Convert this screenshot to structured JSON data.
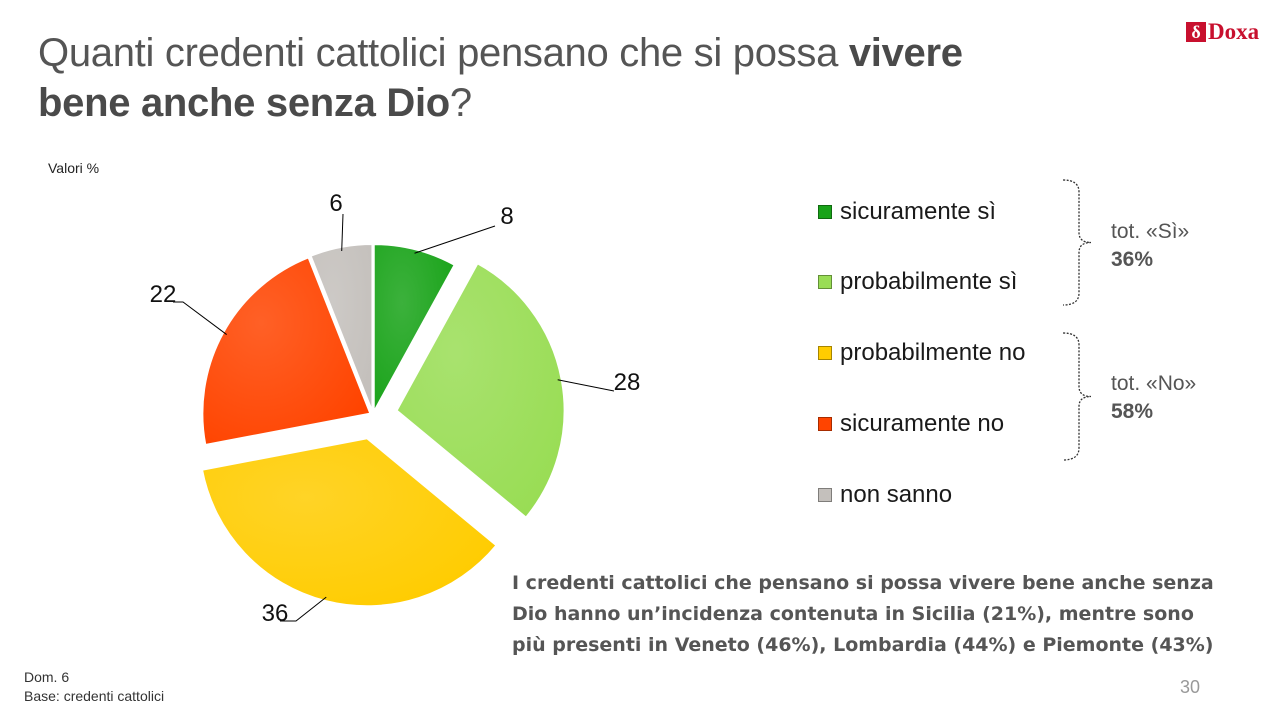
{
  "title": {
    "part1": "Quanti credenti cattolici pensano che si possa ",
    "bold1": "vivere",
    "bold2": "bene anche senza Dio",
    "part2": "?"
  },
  "logo": {
    "mark": "δ",
    "word": "Doxa"
  },
  "unit_label": "Valori %",
  "chart_data": {
    "type": "pie",
    "categories": [
      "sicuramente sì",
      "probabilmente sì",
      "probabilmente no",
      "sicuramente no",
      "non sanno"
    ],
    "values": [
      8,
      28,
      36,
      22,
      6
    ],
    "colors": [
      "#19a319",
      "#99dd55",
      "#ffcc00",
      "#ff4400",
      "#c4c0bc"
    ],
    "legend": "right",
    "annotations": [
      {
        "label": "tot. «Sì»",
        "value": "36%"
      },
      {
        "label": "tot. «No»",
        "value": "58%"
      }
    ]
  },
  "note": "I credenti cattolici che pensano si possa vivere bene anche senza Dio hanno un’incidenza contenuta in Sicilia (21%), mentre sono più presenti in Veneto (46%), Lombardia (44%) e Piemonte (43%)",
  "footer": {
    "line1": "Dom. 6",
    "line2": "Base: credenti cattolici"
  },
  "page_number": "30"
}
